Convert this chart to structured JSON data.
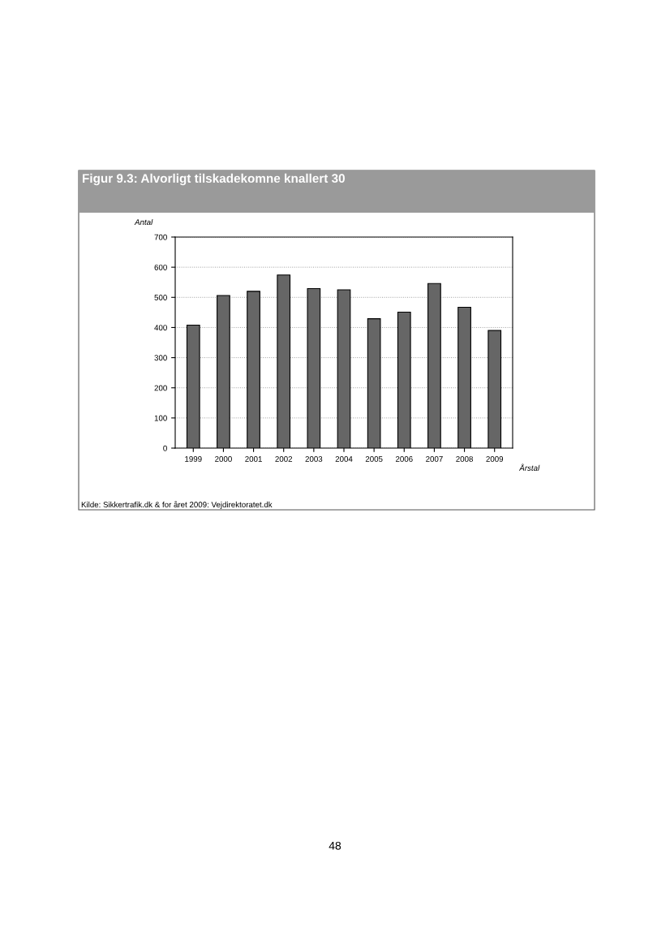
{
  "chart_data": {
    "type": "bar",
    "title": "Figur 9.3: Alvorligt tilskadekomne knallert 30",
    "ylabel": "Antal",
    "xlabel": "Årstal",
    "categories": [
      "1999",
      "2000",
      "2001",
      "2002",
      "2003",
      "2004",
      "2005",
      "2006",
      "2007",
      "2008",
      "2009"
    ],
    "values": [
      408,
      506,
      520,
      574,
      529,
      525,
      429,
      451,
      546,
      467,
      390
    ],
    "color": "#666666",
    "ylim": [
      0,
      700
    ],
    "yticks": [
      0,
      100,
      200,
      300,
      400,
      500,
      600,
      700
    ],
    "grid": "y",
    "legend": false,
    "annotations": [
      "Kilde: Sikkertrafik.dk & for året 2009: Vejdirektoratet.dk",
      "48"
    ]
  }
}
